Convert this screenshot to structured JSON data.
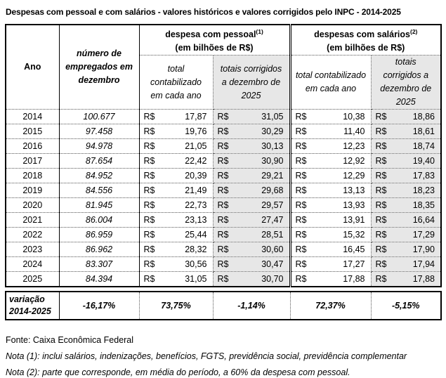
{
  "title": "Despesas com pessoal e com salários - valores históricos e valores corrigidos pelo INPC - 2014-2025",
  "colors": {
    "shaded_column": "#e7e7e7",
    "border": "#000000"
  },
  "table": {
    "currency_prefix": "R$",
    "headers": {
      "ano": "Ano",
      "empregados": "número de empregados em dezembro",
      "group_pessoal": {
        "label": "despesa com pessoal",
        "sup": "(1)",
        "unit": "(em bilhões de R$)"
      },
      "group_salarios": {
        "label": "despesas com salários",
        "sup": "(2)",
        "unit": "(em bilhões de R$)"
      },
      "sub_total": "total contabilizado em cada ano",
      "sub_corrigido": "totais corrigidos a dezembro de 2025"
    },
    "rows": [
      {
        "year": "2014",
        "employees": "100.677",
        "pessoal_total": "17,87",
        "pessoal_corrigido": "31,05",
        "salarios_total": "10,38",
        "salarios_corrigido": "18,86"
      },
      {
        "year": "2015",
        "employees": "97.458",
        "pessoal_total": "19,76",
        "pessoal_corrigido": "30,29",
        "salarios_total": "11,40",
        "salarios_corrigido": "18,61"
      },
      {
        "year": "2016",
        "employees": "94.978",
        "pessoal_total": "21,05",
        "pessoal_corrigido": "30,13",
        "salarios_total": "12,23",
        "salarios_corrigido": "18,74"
      },
      {
        "year": "2017",
        "employees": "87.654",
        "pessoal_total": "22,42",
        "pessoal_corrigido": "30,90",
        "salarios_total": "12,92",
        "salarios_corrigido": "19,40"
      },
      {
        "year": "2018",
        "employees": "84.952",
        "pessoal_total": "20,39",
        "pessoal_corrigido": "29,21",
        "salarios_total": "12,29",
        "salarios_corrigido": "17,83"
      },
      {
        "year": "2019",
        "employees": "84.556",
        "pessoal_total": "21,49",
        "pessoal_corrigido": "29,68",
        "salarios_total": "13,13",
        "salarios_corrigido": "18,23"
      },
      {
        "year": "2020",
        "employees": "81.945",
        "pessoal_total": "22,73",
        "pessoal_corrigido": "29,57",
        "salarios_total": "13,93",
        "salarios_corrigido": "18,35"
      },
      {
        "year": "2021",
        "employees": "86.004",
        "pessoal_total": "23,13",
        "pessoal_corrigido": "27,47",
        "salarios_total": "13,91",
        "salarios_corrigido": "16,64"
      },
      {
        "year": "2022",
        "employees": "86.959",
        "pessoal_total": "25,44",
        "pessoal_corrigido": "28,51",
        "salarios_total": "15,32",
        "salarios_corrigido": "17,29"
      },
      {
        "year": "2023",
        "employees": "86.962",
        "pessoal_total": "28,32",
        "pessoal_corrigido": "30,60",
        "salarios_total": "16,45",
        "salarios_corrigido": "17,90"
      },
      {
        "year": "2024",
        "employees": "83.307",
        "pessoal_total": "30,56",
        "pessoal_corrigido": "30,47",
        "salarios_total": "17,27",
        "salarios_corrigido": "17,94"
      },
      {
        "year": "2025",
        "employees": "84.394",
        "pessoal_total": "31,05",
        "pessoal_corrigido": "30,70",
        "salarios_total": "17,88",
        "salarios_corrigido": "17,88"
      }
    ],
    "variation": {
      "label_line1": "variação",
      "label_line2": "2014-2025",
      "employees": "-16,17%",
      "pessoal_total": "73,75%",
      "pessoal_corrigido": "-1,14%",
      "salarios_total": "72,37%",
      "salarios_corrigido": "-5,15%"
    }
  },
  "footer": {
    "source": "Fonte: Caixa Econômica Federal",
    "note1": "Nota (1): inclui salários, indenizações, benefícios, FGTS, previdência social, previdência complementar",
    "note2": "Nota (2): parte que corresponde, em média do período, a 60% da despesa com pessoal."
  }
}
